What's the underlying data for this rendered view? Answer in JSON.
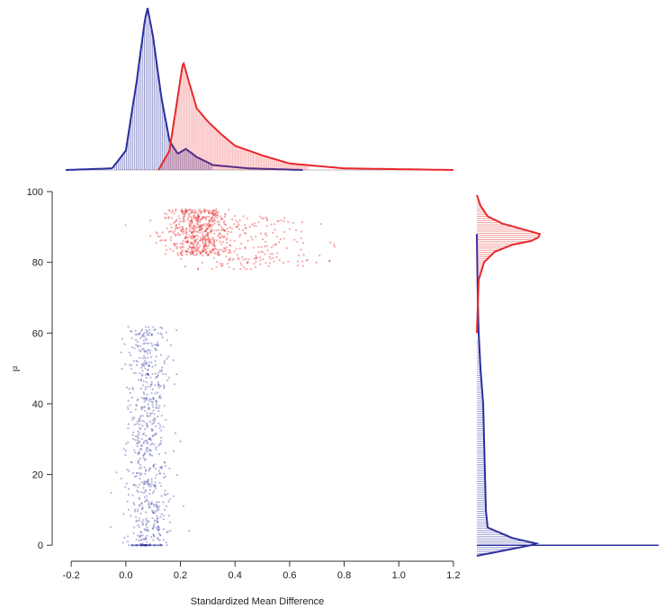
{
  "chart_data": {
    "type": "scatter",
    "xlabel": "Standardized Mean Difference",
    "ylabel": "I²",
    "xlim": [
      -0.25,
      1.22
    ],
    "ylim": [
      -3,
      100
    ],
    "x_ticks": [
      -0.2,
      0.0,
      0.2,
      0.4,
      0.6,
      0.8,
      1.0,
      1.2
    ],
    "x_tick_labels": [
      "-0.2",
      "0.0",
      "0.2",
      "0.4",
      "0.6",
      "0.8",
      "1.0",
      "1.2"
    ],
    "y_ticks": [
      0,
      20,
      40,
      60,
      80,
      100
    ],
    "y_tick_labels": [
      "0",
      "20",
      "40",
      "60",
      "80",
      "100"
    ],
    "grid": false,
    "legend": "none",
    "series": [
      {
        "color": "#2b2f9e",
        "clusters": [
          {
            "x_center": 0.08,
            "x_spread": 0.035,
            "y_min": 0,
            "y_max": 0,
            "count": 70
          },
          {
            "x_center": 0.08,
            "x_spread": 0.04,
            "y_min": 0,
            "y_max": 62,
            "count": 650
          }
        ],
        "x_density": {
          "x": [
            -0.22,
            -0.05,
            0.0,
            0.04,
            0.07,
            0.08,
            0.1,
            0.13,
            0.16,
            0.19,
            0.22,
            0.26,
            0.32,
            0.45,
            0.65
          ],
          "density": [
            0,
            0.01,
            0.12,
            0.55,
            0.93,
            1.0,
            0.82,
            0.45,
            0.18,
            0.1,
            0.13,
            0.08,
            0.03,
            0.01,
            0
          ]
        },
        "y_density": {
          "y": [
            -3,
            0,
            0.5,
            2,
            5,
            10,
            20,
            30,
            40,
            50,
            60,
            70,
            80,
            88
          ],
          "density": [
            0,
            0.3,
            0.33,
            0.2,
            0.06,
            0.05,
            0.045,
            0.04,
            0.035,
            0.02,
            0.01,
            0.005,
            0.002,
            0
          ]
        }
      },
      {
        "color": "#e8272a",
        "clusters": [
          {
            "x_center": 0.26,
            "x_spread": 0.06,
            "y_min": 82,
            "y_max": 95,
            "count": 520
          },
          {
            "x_center": 0.45,
            "x_spread": 0.12,
            "y_min": 78,
            "y_max": 93,
            "count": 220
          }
        ],
        "x_density": {
          "x": [
            0.12,
            0.16,
            0.19,
            0.21,
            0.23,
            0.26,
            0.3,
            0.35,
            0.4,
            0.5,
            0.6,
            0.8,
            1.2
          ],
          "density": [
            0,
            0.12,
            0.45,
            0.67,
            0.55,
            0.38,
            0.3,
            0.22,
            0.15,
            0.09,
            0.04,
            0.01,
            0
          ]
        },
        "y_density": {
          "y": [
            60,
            75,
            80,
            83,
            85,
            86,
            87,
            88,
            89,
            91,
            93,
            96,
            99
          ],
          "density": [
            0,
            0.01,
            0.04,
            0.1,
            0.2,
            0.3,
            0.34,
            0.35,
            0.28,
            0.14,
            0.06,
            0.02,
            0
          ]
        }
      }
    ]
  }
}
